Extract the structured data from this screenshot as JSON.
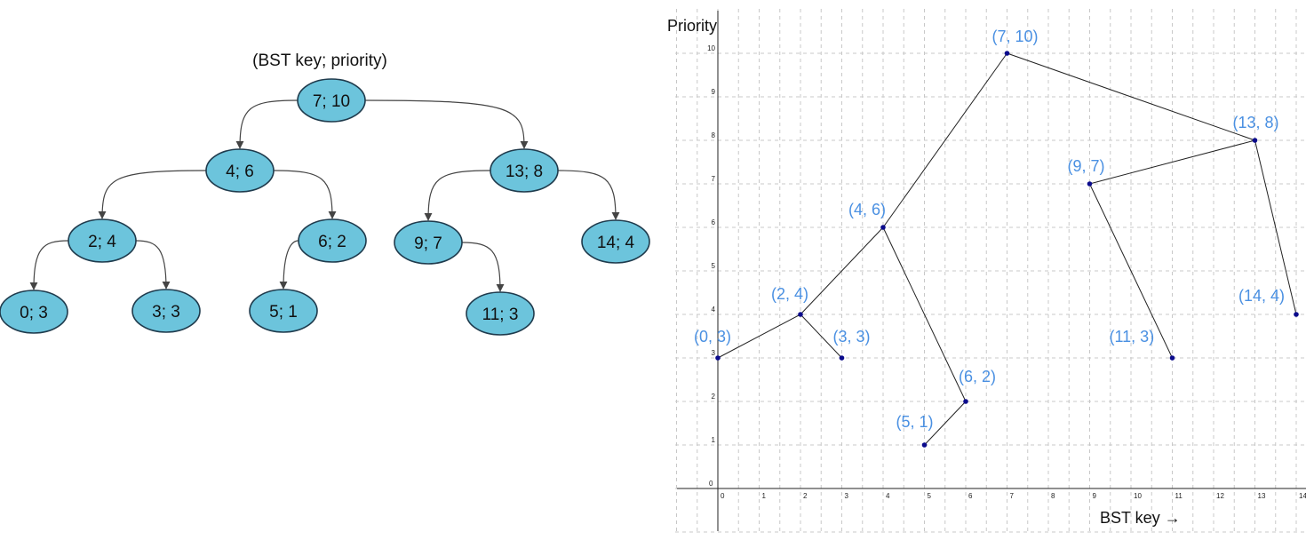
{
  "tree": {
    "title": "(BST key; priority)",
    "nodes": [
      {
        "id": "7",
        "label": "7; 10"
      },
      {
        "id": "4",
        "label": "4; 6"
      },
      {
        "id": "13",
        "label": "13; 8"
      },
      {
        "id": "2",
        "label": "2; 4"
      },
      {
        "id": "6",
        "label": "6; 2"
      },
      {
        "id": "9",
        "label": "9; 7"
      },
      {
        "id": "14",
        "label": "14; 4"
      },
      {
        "id": "0",
        "label": "0; 3"
      },
      {
        "id": "3",
        "label": "3; 3"
      },
      {
        "id": "5",
        "label": "5; 1"
      },
      {
        "id": "11",
        "label": "11; 3"
      }
    ],
    "edges": [
      [
        "7",
        "4"
      ],
      [
        "7",
        "13"
      ],
      [
        "4",
        "2"
      ],
      [
        "4",
        "6"
      ],
      [
        "13",
        "9"
      ],
      [
        "13",
        "14"
      ],
      [
        "2",
        "0"
      ],
      [
        "2",
        "3"
      ],
      [
        "6",
        "5"
      ],
      [
        "9",
        "11"
      ]
    ]
  },
  "plot": {
    "x_axis_label": "BST key →",
    "y_axis_label": "Priority",
    "x_ticks": [
      0,
      1,
      2,
      3,
      4,
      5,
      6,
      7,
      8,
      9,
      10,
      11,
      12,
      13,
      14
    ],
    "y_ticks": [
      0,
      1,
      2,
      3,
      4,
      5,
      6,
      7,
      8,
      9,
      10
    ],
    "points": [
      {
        "x": 7,
        "y": 10,
        "label": "(7, 10)"
      },
      {
        "x": 13,
        "y": 8,
        "label": "(13, 8)"
      },
      {
        "x": 9,
        "y": 7,
        "label": "(9, 7)"
      },
      {
        "x": 4,
        "y": 6,
        "label": "(4, 6)"
      },
      {
        "x": 2,
        "y": 4,
        "label": "(2, 4)"
      },
      {
        "x": 14,
        "y": 4,
        "label": "(14, 4)"
      },
      {
        "x": 0,
        "y": 3,
        "label": "(0, 3)"
      },
      {
        "x": 3,
        "y": 3,
        "label": "(3, 3)"
      },
      {
        "x": 11,
        "y": 3,
        "label": "(11, 3)"
      },
      {
        "x": 6,
        "y": 2,
        "label": "(6, 2)"
      },
      {
        "x": 5,
        "y": 1,
        "label": "(5, 1)"
      }
    ],
    "edges": [
      [
        7,
        4
      ],
      [
        7,
        13
      ],
      [
        4,
        2
      ],
      [
        4,
        6
      ],
      [
        13,
        9
      ],
      [
        13,
        14
      ],
      [
        2,
        0
      ],
      [
        2,
        3
      ],
      [
        6,
        5
      ],
      [
        9,
        11
      ]
    ],
    "colors": {
      "label": "#4a90e2",
      "point": "#0b0b8c",
      "node_fill": "#6cc4dc"
    }
  }
}
